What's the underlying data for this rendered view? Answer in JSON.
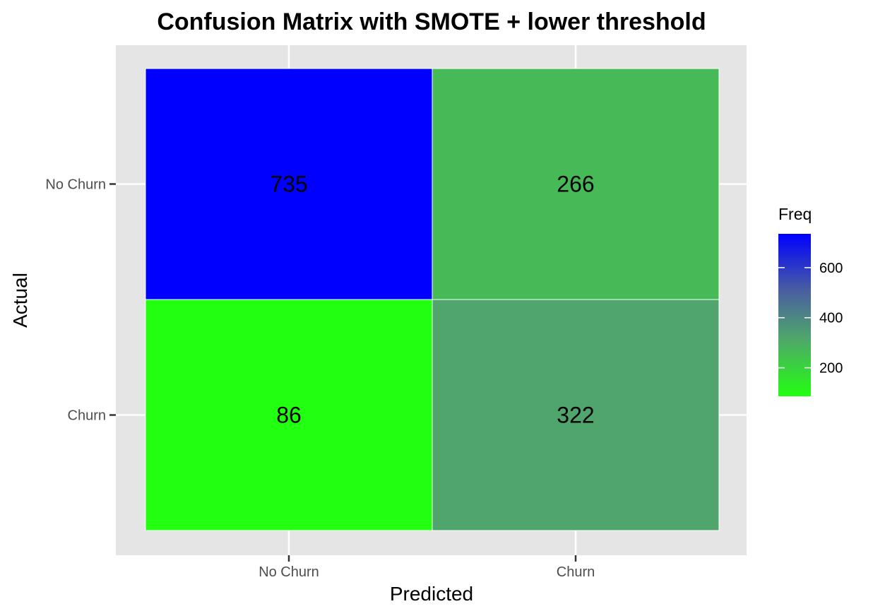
{
  "chart_data": {
    "type": "heatmap",
    "title": "Confusion Matrix with SMOTE + lower threshold",
    "xlabel": "Predicted",
    "ylabel": "Actual",
    "x_categories": [
      "No Churn",
      "Churn"
    ],
    "y_categories": [
      "No Churn",
      "Churn"
    ],
    "cells": [
      {
        "x": "No Churn",
        "y": "No Churn",
        "value": 735
      },
      {
        "x": "Churn",
        "y": "No Churn",
        "value": 266
      },
      {
        "x": "No Churn",
        "y": "Churn",
        "value": 86
      },
      {
        "x": "Churn",
        "y": "Churn",
        "value": 322
      }
    ],
    "legend": {
      "title": "Freq",
      "ticks": [
        200,
        400,
        600
      ],
      "range": [
        86,
        735
      ],
      "low_color": "#22ff10",
      "high_color": "#0000ff",
      "placement": "right"
    },
    "grid": true,
    "panel_background": "#e5e5e5"
  }
}
